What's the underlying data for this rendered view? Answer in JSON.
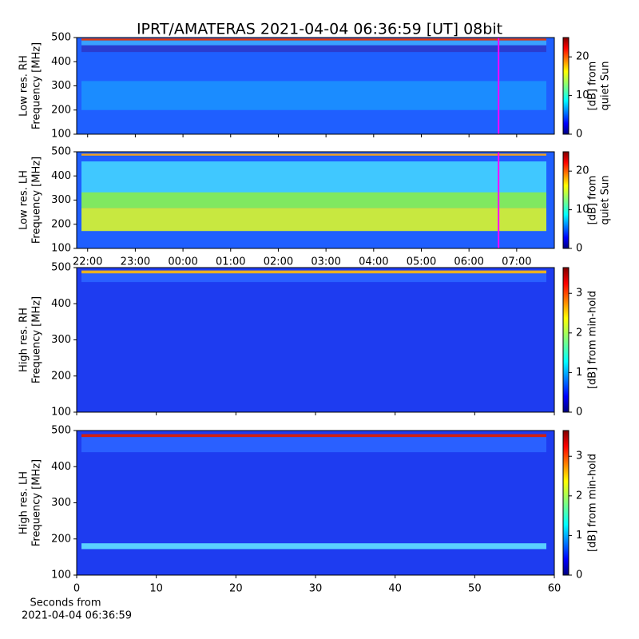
{
  "title": "IPRT/AMATERAS 2021-04-04 06:36:59 [UT]   08bit",
  "xlabel": [
    "Seconds from",
    "2021-04-04 06:36:59"
  ],
  "chart_data": [
    {
      "type": "heatmap",
      "ylabel": [
        "Low res. RH",
        "Frequency [MHz]"
      ],
      "xlim": [
        21.77,
        31.79
      ],
      "ylim": [
        100,
        500
      ],
      "yticks": [
        100,
        200,
        300,
        400,
        500
      ],
      "marker_x": 30.62,
      "marker_color": "#ff00ff",
      "clim": [
        0,
        25
      ],
      "cticks": [
        0,
        10,
        20
      ],
      "clabel": [
        "[dB] from",
        "quiet Sun"
      ]
    },
    {
      "type": "heatmap",
      "ylabel": [
        "Low res. LH",
        "Frequency [MHz]"
      ],
      "xlim": [
        21.77,
        31.79
      ],
      "ylim": [
        100,
        500
      ],
      "yticks": [
        100,
        200,
        300,
        400,
        500
      ],
      "xticks": [
        {
          "value": 22,
          "label": "22:00"
        },
        {
          "value": 23,
          "label": "23:00"
        },
        {
          "value": 24,
          "label": "00:00"
        },
        {
          "value": 25,
          "label": "01:00"
        },
        {
          "value": 26,
          "label": "02:00"
        },
        {
          "value": 27,
          "label": "03:00"
        },
        {
          "value": 28,
          "label": "04:00"
        },
        {
          "value": 29,
          "label": "05:00"
        },
        {
          "value": 30,
          "label": "06:00"
        },
        {
          "value": 31,
          "label": "07:00"
        }
      ],
      "marker_x": 30.62,
      "marker_color": "#ff00ff",
      "clim": [
        0,
        25
      ],
      "cticks": [
        0,
        10,
        20
      ],
      "clabel": [
        "[dB] from",
        "quiet Sun"
      ]
    },
    {
      "type": "heatmap",
      "ylabel": [
        "High res. RH",
        "Frequency [MHz]"
      ],
      "xlim": [
        0,
        60
      ],
      "ylim": [
        100,
        500
      ],
      "yticks": [
        100,
        200,
        300,
        400,
        500
      ],
      "clim": [
        0,
        3.65
      ],
      "cticks": [
        0,
        1,
        2,
        3
      ],
      "clabel": [
        "[dB] from min-hold"
      ]
    },
    {
      "type": "heatmap",
      "ylabel": [
        "High res. LH",
        "Frequency [MHz]"
      ],
      "xlim": [
        0,
        60
      ],
      "ylim": [
        100,
        500
      ],
      "yticks": [
        100,
        200,
        300,
        400,
        500
      ],
      "xticks": [
        0,
        10,
        20,
        30,
        40,
        50,
        60
      ],
      "clim": [
        0,
        3.65
      ],
      "cticks": [
        0,
        1,
        2,
        3
      ],
      "clabel": [
        "[dB] from min-hold"
      ]
    }
  ]
}
